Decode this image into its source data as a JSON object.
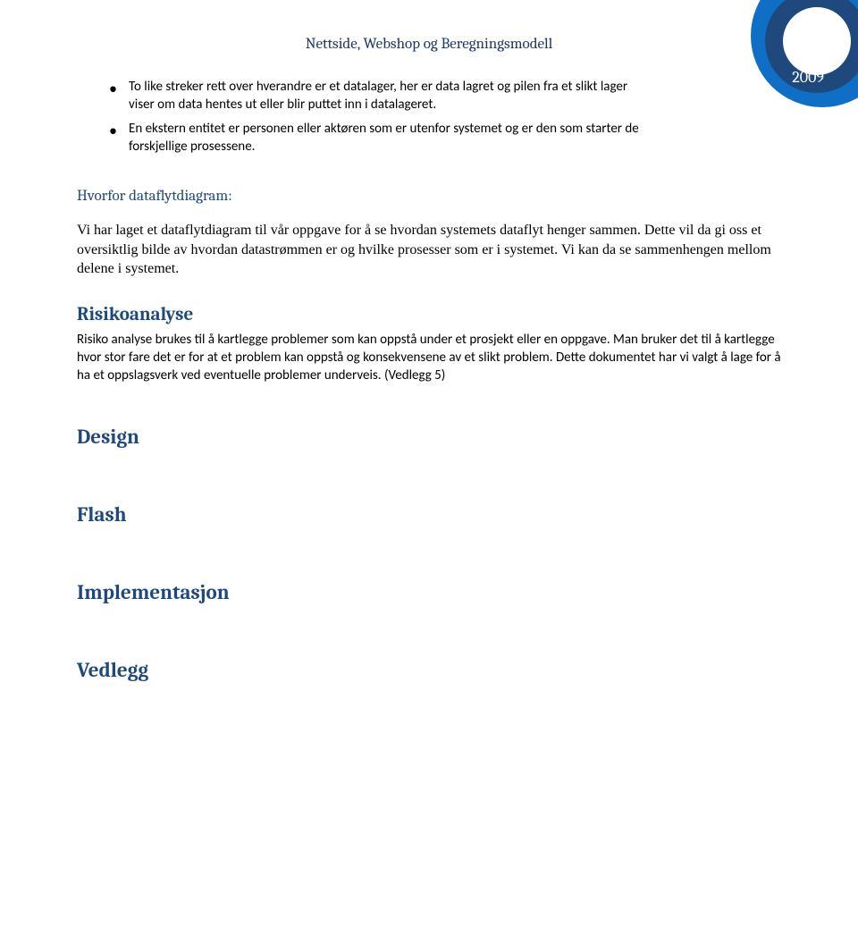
{
  "colors": {
    "heading_blue": "#1f497d",
    "badge_outer": "#0f6fc6",
    "badge_mid": "#1f497d",
    "badge_inner": "#ffffff",
    "text": "#000000",
    "background": "#ffffff"
  },
  "typography": {
    "header_font": "Cambria",
    "body_serif_font": "Times New Roman",
    "body_sans_font": "Calibri",
    "header_title_size_pt": 13,
    "section_title_size_pt": 13,
    "big_heading_size_pt": 16,
    "sec_heading_size_pt": 17,
    "body_size_pt": 11
  },
  "header": {
    "title": "Nettside, Webshop og Beregningsmodell",
    "year": "2009"
  },
  "bullets": [
    "To like streker rett over hverandre er et datalager, her er data lagret og pilen fra et slikt lager viser om data hentes ut eller blir puttet inn i datalageret.",
    "En ekstern entitet er personen eller aktøren som er utenfor systemet og er den som starter de forskjellige prosessene."
  ],
  "sections": {
    "hvorfor": {
      "title": "Hvorfor dataflytdiagram:",
      "body": "Vi har laget et dataflytdiagram til vår oppgave for å se hvordan systemets dataflyt henger sammen. Dette vil da gi oss et oversiktlig bilde av hvordan datastrømmen er og hvilke prosesser som er i systemet.  Vi kan da se sammenhengen mellom delene i systemet."
    },
    "risiko": {
      "title": "Risikoanalyse",
      "body": "Risiko analyse brukes til å kartlegge problemer som kan oppstå under et prosjekt eller en oppgave. Man bruker det til å kartlegge hvor stor fare det er for at et problem kan oppstå og konsekvensene av et slikt problem. Dette dokumentet har vi valgt å lage for å ha et oppslagsverk ved eventuelle problemer underveis. (Vedlegg 5)"
    },
    "design": {
      "title": "Design"
    },
    "flash": {
      "title": "Flash"
    },
    "implementasjon": {
      "title": "Implementasjon"
    },
    "vedlegg": {
      "title": "Vedlegg"
    }
  }
}
